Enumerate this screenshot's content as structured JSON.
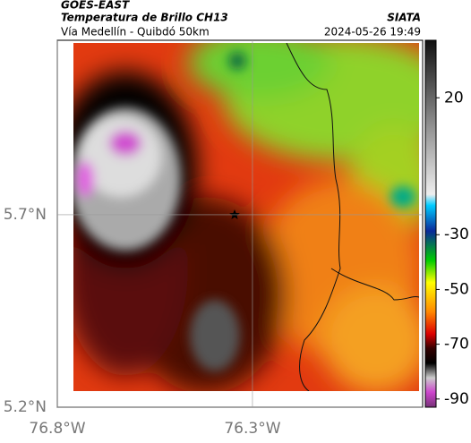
{
  "header": {
    "satellite": "GOES-EAST",
    "product": "Temperatura de Brillo CH13",
    "source": "SIATA",
    "route": "Vía Medellín - Quibdó 50km",
    "datetime": "2024-05-26 19:49"
  },
  "map": {
    "xlim": [
      -76.8,
      -75.864
    ],
    "ylim": [
      5.2,
      6.153
    ],
    "xticks": [
      {
        "value": -76.8,
        "label": "76.8°W"
      },
      {
        "value": -76.3,
        "label": "76.3°W"
      }
    ],
    "yticks": [
      {
        "value": 5.7,
        "label": "5.7°N"
      },
      {
        "value": 5.2,
        "label": "5.2°N"
      }
    ]
  },
  "colorbar": {
    "lim": [
      -93,
      41
    ],
    "ticks": [
      20,
      -30,
      -50,
      -70,
      -90
    ]
  }
}
